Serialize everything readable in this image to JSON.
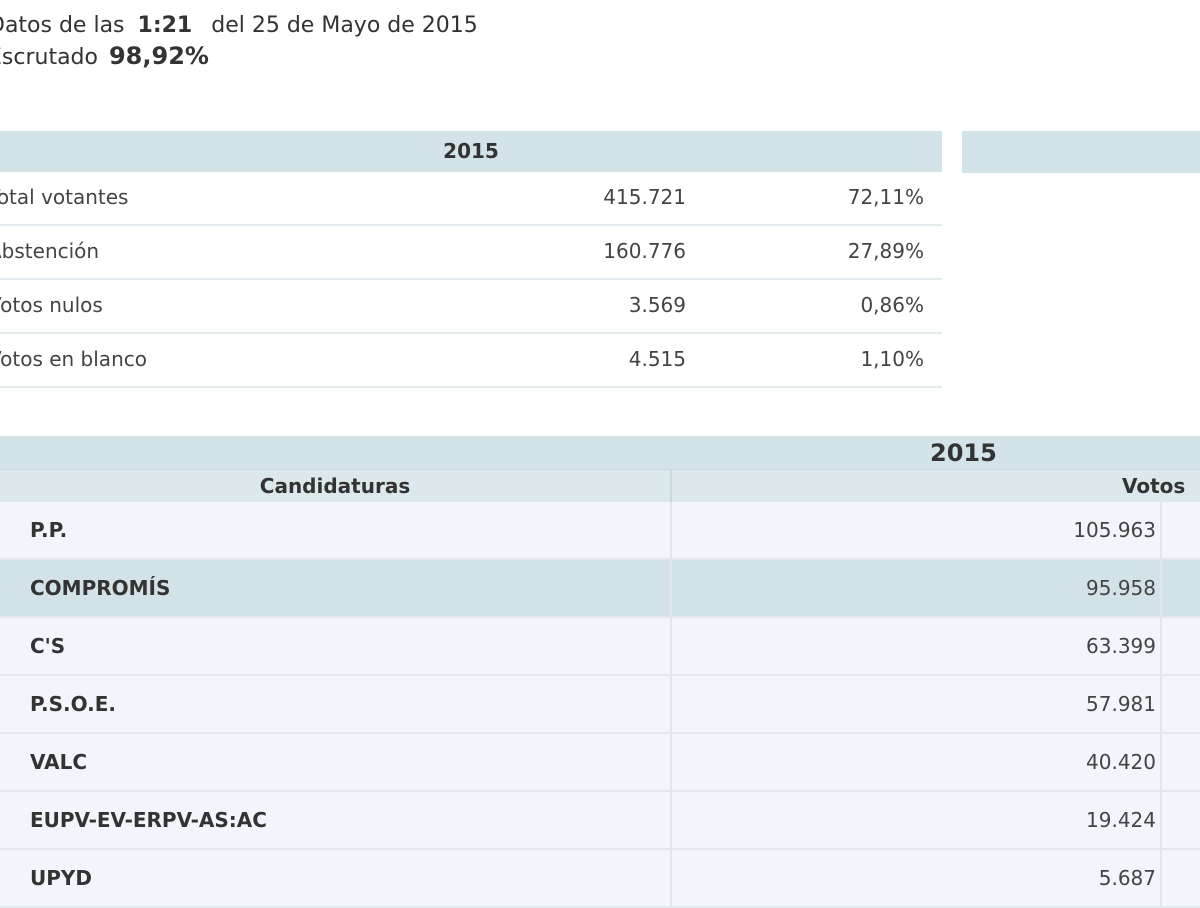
{
  "header": {
    "prefix": "Datos de las",
    "time": "1:21",
    "date_text": "del 25 de Mayo de 2015",
    "escrutado_label": "Escrutado",
    "escrutado_value": "98,92%"
  },
  "summary": {
    "year": "2015",
    "rows": [
      {
        "label": "Total votantes",
        "value": "415.721",
        "pct": "72,11%"
      },
      {
        "label": "Abstención",
        "value": "160.776",
        "pct": "27,89%"
      },
      {
        "label": "Votos nulos",
        "value": "3.569",
        "pct": "0,86%"
      },
      {
        "label": "Votos en blanco",
        "value": "4.515",
        "pct": "1,10%"
      }
    ]
  },
  "results": {
    "year": "2015",
    "col_candidaturas": "Candidaturas",
    "col_votos": "Votos",
    "rows": [
      {
        "name": "P.P.",
        "votes": "105.963"
      },
      {
        "name": "COMPROMÍS",
        "votes": "95.958"
      },
      {
        "name": "C'S",
        "votes": "63.399"
      },
      {
        "name": "P.S.O.E.",
        "votes": "57.981"
      },
      {
        "name": "VALC",
        "votes": "40.420"
      },
      {
        "name": "EUPV-EV-ERPV-AS:AC",
        "votes": "19.424"
      },
      {
        "name": "UPYD",
        "votes": "5.687"
      }
    ]
  },
  "colors": {
    "header_band": "#d3e3e8",
    "row_light": "#f2f5fb",
    "row_highlight": "#d2e2e7"
  }
}
